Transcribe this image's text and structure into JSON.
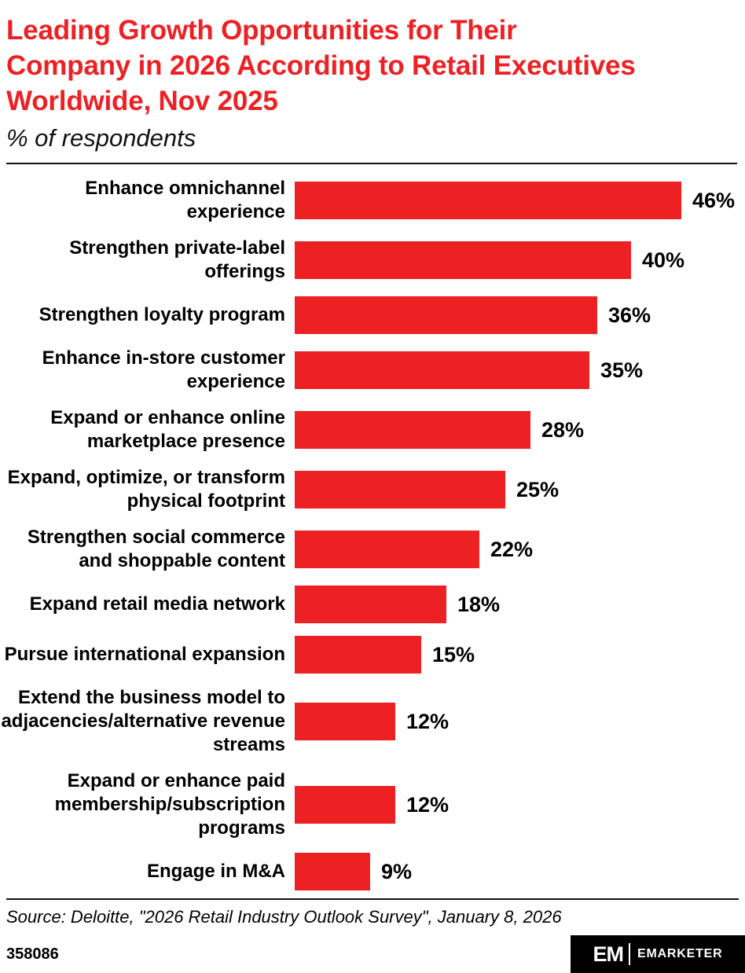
{
  "header": {
    "title_lines": [
      "Leading Growth Opportunities for Their",
      "Company in 2026 According to Retail Executives",
      "Worldwide, Nov 2025"
    ],
    "subtitle": "% of respondents"
  },
  "source": "Source: Deloitte, \"2026 Retail Industry Outlook Survey\", January 8, 2026",
  "footer": {
    "chart_id": "358086",
    "brand_mark": "EM",
    "brand_name": "EMARKETER"
  },
  "colors": {
    "accent_red": "#ED2024",
    "bar_red": "#ED2024",
    "text": "#000000",
    "footer_bg": "#000000"
  },
  "chart_data": {
    "type": "bar",
    "orientation": "horizontal",
    "title": "Leading Growth Opportunities for Their Company in 2026 According to Retail Executives Worldwide, Nov 2025",
    "subtitle": "% of respondents",
    "categories": [
      "Enhance omnichannel experience",
      "Strengthen private-label offerings",
      "Strengthen loyalty program",
      "Enhance in-store customer experience",
      "Expand or enhance online marketplace presence",
      "Expand, optimize, or transform physical footprint",
      "Strengthen social commerce and shoppable content",
      "Expand retail media network",
      "Pursue international expansion",
      "Extend the business model to adjacencies/alternative revenue streams",
      "Expand or enhance paid membership/subscription programs",
      "Engage in M&A"
    ],
    "values": [
      46,
      40,
      36,
      35,
      28,
      25,
      22,
      18,
      15,
      12,
      12,
      9
    ],
    "value_suffix": "%",
    "xlim": [
      0,
      50
    ],
    "grid": false,
    "legend": "none",
    "bar_color": "#ED2024"
  }
}
